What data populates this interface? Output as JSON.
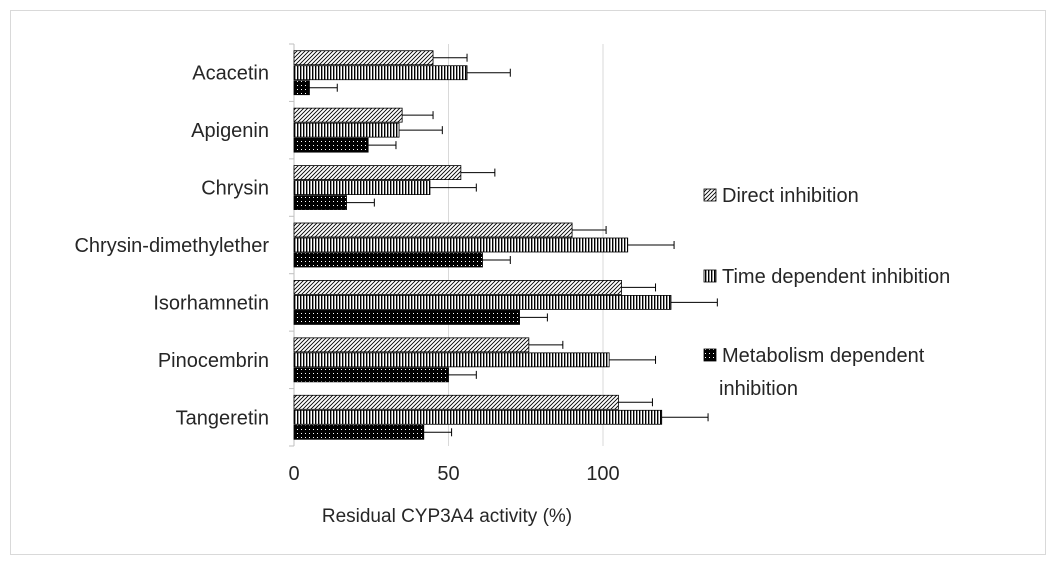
{
  "chart_data": {
    "type": "bar",
    "orientation": "horizontal",
    "title": "",
    "xlabel": "Residual CYP3A4 activity (%)",
    "ylabel": "",
    "xlim": [
      0,
      130
    ],
    "xticks": [
      0,
      50,
      100
    ],
    "grid": true,
    "legend_position": "right",
    "categories": [
      "Acacetin",
      "Apigenin",
      "Chrysin",
      "Chrysin-dimethylether",
      "Isorhamnetin",
      "Pinocembrin",
      "Tangeretin"
    ],
    "series": [
      {
        "name": "Direct inhibition",
        "pattern": "diagonal-hatch",
        "values": [
          45,
          35,
          54,
          90,
          106,
          76,
          105
        ],
        "errors": [
          11,
          10,
          11,
          11,
          11,
          11,
          11
        ]
      },
      {
        "name": "Time dependent inhibition",
        "pattern": "vertical-lines",
        "values": [
          56,
          34,
          44,
          108,
          122,
          102,
          119
        ],
        "errors": [
          14,
          14,
          15,
          15,
          15,
          15,
          15
        ]
      },
      {
        "name": "Metabolism dependent inhibition",
        "pattern": "dense-dots",
        "values": [
          5,
          24,
          17,
          61,
          73,
          50,
          42
        ],
        "errors": [
          9,
          9,
          9,
          9,
          9,
          9,
          9
        ]
      }
    ],
    "colors": {
      "bar_edge": "#000000",
      "grid": "#d9d9d9",
      "axis": "#bfbfbf",
      "text": "#262626"
    }
  }
}
